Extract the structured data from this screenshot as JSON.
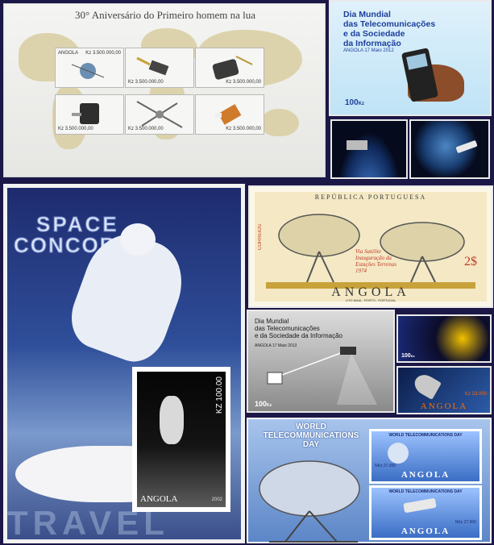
{
  "moon_sheet": {
    "title": "30° Aniversário do Primeiro homem na lua",
    "country": "ANGOLA",
    "values": [
      "Kz 3.500.000,00",
      "Kz 3.500.000,00",
      "Kz 3.500.000,00",
      "Kz 3.500.000,00",
      "Kz 3.500.000,00",
      "Kz 3.500.000,00"
    ]
  },
  "telecom_stamp": {
    "title_line1": "Dia Mundial",
    "title_line2": "das Telecomunicações",
    "title_line3": "e da Sociedade",
    "title_line4": "da Informação",
    "date": "ANGOLA 17 Maio 2012",
    "value": "100",
    "unit": "Kz"
  },
  "concorde_sheet": {
    "title_line1": "SPACE",
    "title_line2": "CONCORDE",
    "bottom": "TRAVEL",
    "inner_country": "ANGOLA",
    "inner_value": "KZ 100.00",
    "inner_year": "2002"
  },
  "portugal_stamp": {
    "header": "REPÚBLICA PORTUGUESA",
    "side": "CORREIOS",
    "caption_line1": "Via Satélite",
    "caption_line2": "Inauguração da",
    "caption_line3": "Estações Terrenas",
    "caption_line4": "1974",
    "value": "2$",
    "country": "ANGOLA",
    "printer": "LITO MAIA - PORTO - PORTUGAL"
  },
  "telecom_stamp2": {
    "title_line1": "Dia Mundial",
    "title_line2": "das Telecomunicações",
    "title_line3": "e da Sociedade da Informação",
    "date": "ANGOLA 17 Maio 2013",
    "value": "100",
    "unit": "Kz"
  },
  "small_stamp_eclipse": {
    "value": "100",
    "unit": "Kz"
  },
  "small_stamp_capsule": {
    "country": "ANGOLA",
    "value": "Kz 23.000"
  },
  "wtd_sheet": {
    "title_line1": "WORLD",
    "title_line2": "TELECOMMUNICATIONS",
    "title_line3": "DAY",
    "stamp1_title": "WORLD TELECOMMUNICATIONS DAY",
    "stamp1_value": "NKz 27.000",
    "stamp1_country": "ANGOLA",
    "stamp2_title": "WORLD TELECOMMUNICATIONS DAY",
    "stamp2_value": "NKz 27.000",
    "stamp2_country": "ANGOLA"
  }
}
